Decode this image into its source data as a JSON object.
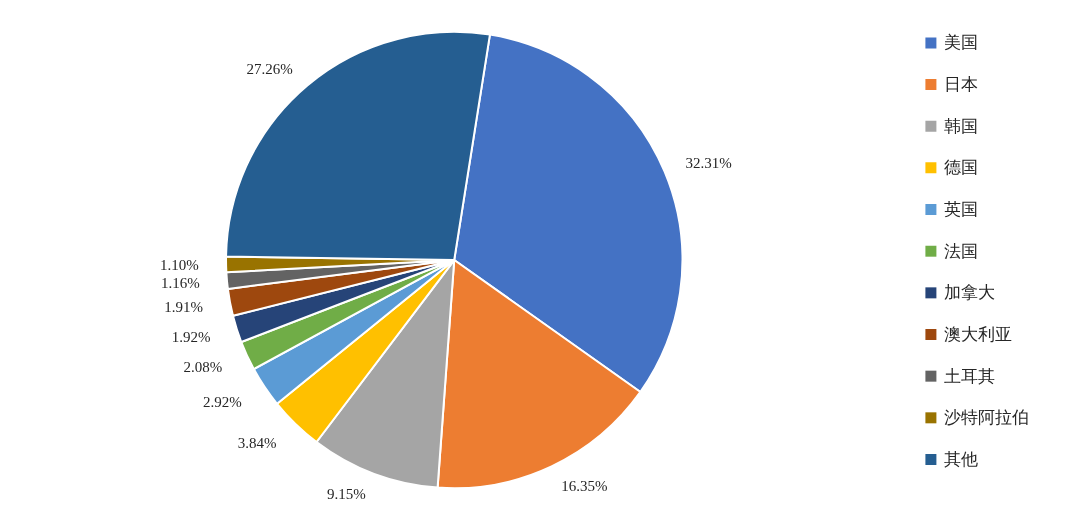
{
  "chart_data": {
    "type": "pie",
    "categories": [
      "美国",
      "日本",
      "韩国",
      "德国",
      "英国",
      "法国",
      "加拿大",
      "澳大利亚",
      "土耳其",
      "沙特阿拉伯",
      "其他"
    ],
    "values": [
      32.31,
      16.35,
      9.15,
      3.84,
      2.92,
      2.08,
      1.92,
      1.91,
      1.16,
      1.1,
      27.26
    ],
    "colors": [
      "#4472c4",
      "#ed7d31",
      "#a5a5a5",
      "#ffc000",
      "#5b9bd5",
      "#70ad47",
      "#264478",
      "#9e480e",
      "#636363",
      "#997300",
      "#255e91"
    ],
    "value_labels": [
      "32.31%",
      "16.35%",
      "9.15%",
      "3.84%",
      "2.92%",
      "2.08%",
      "1.92%",
      "1.91%",
      "1.16%",
      "1.10%",
      "27.26%"
    ],
    "legend": "right"
  }
}
